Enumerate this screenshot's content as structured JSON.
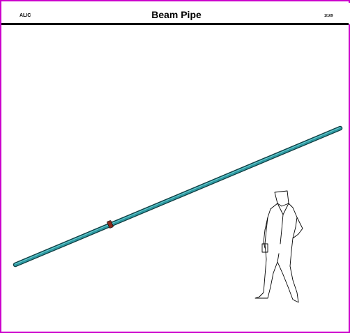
{
  "header": {
    "experiment": "ALIC",
    "title": "Beam Pipe",
    "page": "1/169"
  },
  "colors": {
    "frame_border": "#cc00cc",
    "pipe_body": "#2e9aa2",
    "pipe_outline": "#0f3c40",
    "flange": "#8b2a1e",
    "figure_outline": "#000000"
  }
}
